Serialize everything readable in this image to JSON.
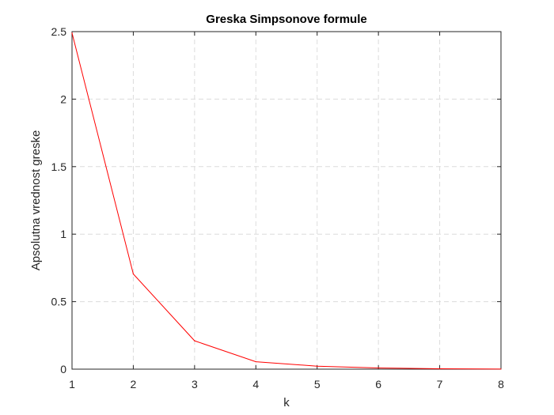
{
  "chart_data": {
    "type": "line",
    "title": "Greska Simpsonove formule",
    "xlabel": "k",
    "ylabel": "Apsolutna vrednost greske",
    "x": [
      1,
      2,
      3,
      4,
      5,
      6,
      7,
      8
    ],
    "series": [
      {
        "values": [
          2.49,
          0.705,
          0.21,
          0.055,
          0.022,
          0.009,
          0.003,
          0.001
        ],
        "color": "#ff0000"
      }
    ],
    "xlim": [
      1,
      8
    ],
    "ylim": [
      0,
      2.5
    ],
    "xticks": [
      "1",
      "2",
      "3",
      "4",
      "5",
      "6",
      "7",
      "8"
    ],
    "yticks": [
      "0",
      "0.5",
      "1",
      "1.5",
      "2",
      "2.5"
    ],
    "grid": true
  }
}
